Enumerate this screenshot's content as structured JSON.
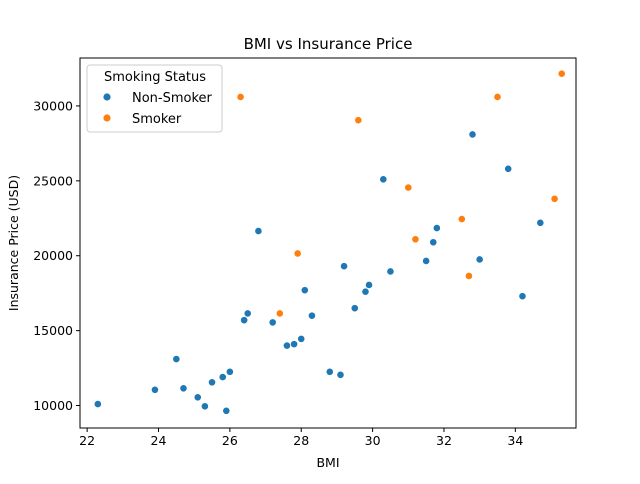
{
  "chart_data": {
    "type": "scatter",
    "title": "BMI vs Insurance Price",
    "xlabel": "BMI",
    "ylabel": "Insurance Price (USD)",
    "xlim": [
      21.8,
      35.7
    ],
    "ylim": [
      8500,
      33200
    ],
    "xticks": [
      22,
      24,
      26,
      28,
      30,
      32,
      34
    ],
    "yticks": [
      10000,
      15000,
      20000,
      25000,
      30000
    ],
    "xtick_labels": [
      "22",
      "24",
      "26",
      "28",
      "30",
      "32",
      "34"
    ],
    "ytick_labels": [
      "10000",
      "15000",
      "20000",
      "25000",
      "30000"
    ],
    "grid": false,
    "legend": {
      "title": "Smoking Status",
      "placement": "top-left"
    },
    "series": [
      {
        "name": "Non-Smoker",
        "color": "#1f77b4",
        "points": [
          [
            22.3,
            10100
          ],
          [
            23.9,
            11050
          ],
          [
            24.5,
            13100
          ],
          [
            24.7,
            11150
          ],
          [
            25.1,
            10550
          ],
          [
            25.3,
            9950
          ],
          [
            25.5,
            11550
          ],
          [
            25.8,
            11900
          ],
          [
            25.9,
            9650
          ],
          [
            26.0,
            12250
          ],
          [
            26.4,
            15700
          ],
          [
            26.5,
            16150
          ],
          [
            26.8,
            21650
          ],
          [
            27.2,
            15550
          ],
          [
            27.6,
            14000
          ],
          [
            27.8,
            14100
          ],
          [
            28.0,
            14450
          ],
          [
            28.1,
            17700
          ],
          [
            28.3,
            16000
          ],
          [
            28.8,
            12250
          ],
          [
            29.1,
            12050
          ],
          [
            29.2,
            19300
          ],
          [
            29.5,
            16500
          ],
          [
            29.8,
            17600
          ],
          [
            29.9,
            18050
          ],
          [
            30.3,
            25100
          ],
          [
            30.5,
            18950
          ],
          [
            31.5,
            19650
          ],
          [
            31.7,
            20900
          ],
          [
            31.8,
            21850
          ],
          [
            32.8,
            28100
          ],
          [
            33.0,
            19750
          ],
          [
            33.8,
            25800
          ],
          [
            34.2,
            17300
          ],
          [
            34.7,
            22200
          ]
        ]
      },
      {
        "name": "Smoker",
        "color": "#ff7f0e",
        "points": [
          [
            26.3,
            30600
          ],
          [
            27.4,
            16150
          ],
          [
            27.9,
            20150
          ],
          [
            29.6,
            29050
          ],
          [
            31.0,
            24550
          ],
          [
            31.2,
            21100
          ],
          [
            32.5,
            22450
          ],
          [
            32.7,
            18650
          ],
          [
            33.5,
            30600
          ],
          [
            35.1,
            23800
          ],
          [
            35.3,
            32150
          ]
        ]
      }
    ]
  }
}
